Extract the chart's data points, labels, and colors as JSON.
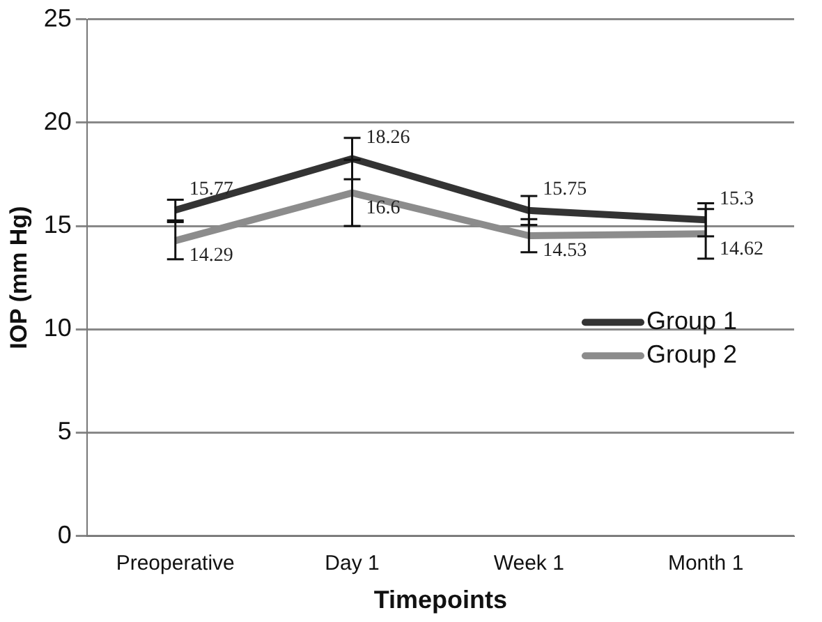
{
  "chart_data": {
    "type": "line",
    "xlabel": "Timepoints",
    "ylabel": "IOP (mm Hg)",
    "categories": [
      "Preoperative",
      "Day 1",
      "Week 1",
      "Month 1"
    ],
    "series": [
      {
        "name": "Group 1",
        "color": "#333333",
        "values": [
          15.77,
          18.26,
          15.75,
          15.3
        ],
        "errors": [
          0.5,
          1.0,
          0.7,
          0.8
        ]
      },
      {
        "name": "Group 2",
        "color": "#8c8c8c",
        "values": [
          14.29,
          16.6,
          14.53,
          14.62
        ],
        "errors": [
          0.9,
          1.6,
          0.8,
          1.2
        ]
      }
    ],
    "ylim": [
      0,
      25
    ],
    "yticks": [
      0,
      5,
      10,
      15,
      20,
      25
    ],
    "grid": "y",
    "legend": "right",
    "marker": "none",
    "line_style": "solid",
    "data_labels": true
  }
}
